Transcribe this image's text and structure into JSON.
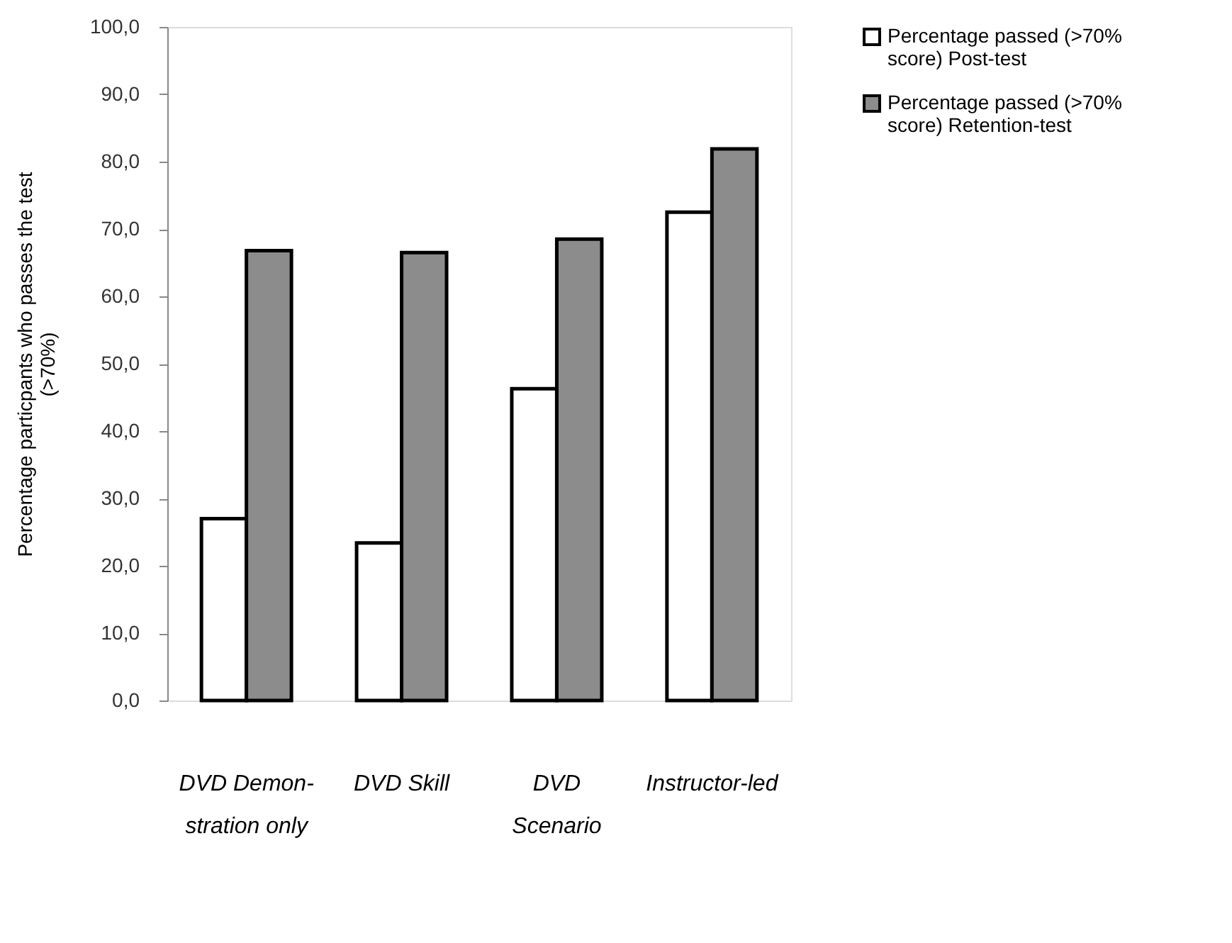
{
  "chart_data": {
    "type": "bar",
    "ylabel": "Percentage particpants who passes the test\n(>70%)",
    "categories": [
      "DVD Demon-\nstration only",
      "DVD Skill",
      "DVD\nScenario",
      "Instructor-led"
    ],
    "series": [
      {
        "name": "Percentage passed (>70%\nscore) Post-test",
        "color": "#ffffff",
        "values": [
          27.0,
          23.4,
          46.3,
          72.5
        ]
      },
      {
        "name": "Percentage passed (>70%\nscore) Retention-test",
        "color": "#8c8c8c",
        "values": [
          66.8,
          66.5,
          68.5,
          81.9
        ]
      }
    ],
    "ylim": [
      0,
      100
    ],
    "yticks": [
      {
        "value": 0,
        "label": "0,0"
      },
      {
        "value": 10,
        "label": "10,0"
      },
      {
        "value": 20,
        "label": "20,0"
      },
      {
        "value": 30,
        "label": "30,0"
      },
      {
        "value": 40,
        "label": "40,0"
      },
      {
        "value": 50,
        "label": "50,0"
      },
      {
        "value": 60,
        "label": "60,0"
      },
      {
        "value": 70,
        "label": "70,0"
      },
      {
        "value": 80,
        "label": "80,0"
      },
      {
        "value": 90,
        "label": "90,0"
      },
      {
        "value": 100,
        "label": "100,0"
      }
    ],
    "grid": false,
    "legend": "right"
  }
}
